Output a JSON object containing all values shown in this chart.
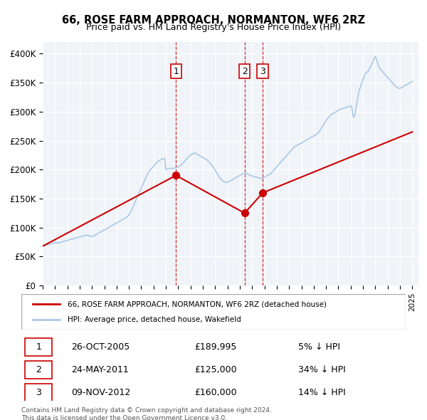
{
  "title": "66, ROSE FARM APPROACH, NORMANTON, WF6 2RZ",
  "subtitle": "Price paid vs. HM Land Registry's House Price Index (HPI)",
  "property_label": "66, ROSE FARM APPROACH, NORMANTON, WF6 2RZ (detached house)",
  "hpi_label": "HPI: Average price, detached house, Wakefield",
  "property_color": "#cc0000",
  "hpi_color": "#aac8e8",
  "background_color": "#f0f4f8",
  "plot_bg_color": "#f0f4f8",
  "xlim_start": 1995.0,
  "xlim_end": 2025.5,
  "ylim": [
    0,
    420000
  ],
  "yticks": [
    0,
    50000,
    100000,
    150000,
    200000,
    250000,
    300000,
    350000,
    400000
  ],
  "ytick_labels": [
    "£0",
    "£50K",
    "£100K",
    "£150K",
    "£200K",
    "£250K",
    "£300K",
    "£350K",
    "£400K"
  ],
  "transactions": [
    {
      "num": 1,
      "date": "26-OCT-2005",
      "price": 189995,
      "pct": "5%",
      "direction": "↓",
      "year_x": 2005.82
    },
    {
      "num": 2,
      "date": "24-MAY-2011",
      "price": 125000,
      "pct": "34%",
      "direction": "↓",
      "year_x": 2011.39
    },
    {
      "num": 3,
      "date": "09-NOV-2012",
      "price": 160000,
      "pct": "14%",
      "direction": "↓",
      "year_x": 2012.86
    }
  ],
  "footnote1": "Contains HM Land Registry data © Crown copyright and database right 2024.",
  "footnote2": "This data is licensed under the Open Government Licence v3.0.",
  "hpi_data": {
    "years": [
      1995.0,
      1995.083,
      1995.167,
      1995.25,
      1995.333,
      1995.417,
      1995.5,
      1995.583,
      1995.667,
      1995.75,
      1995.833,
      1995.917,
      1996.0,
      1996.083,
      1996.167,
      1996.25,
      1996.333,
      1996.417,
      1996.5,
      1996.583,
      1996.667,
      1996.75,
      1996.833,
      1996.917,
      1997.0,
      1997.083,
      1997.167,
      1997.25,
      1997.333,
      1997.417,
      1997.5,
      1997.583,
      1997.667,
      1997.75,
      1997.833,
      1997.917,
      1998.0,
      1998.083,
      1998.167,
      1998.25,
      1998.333,
      1998.417,
      1998.5,
      1998.583,
      1998.667,
      1998.75,
      1998.833,
      1998.917,
      1999.0,
      1999.083,
      1999.167,
      1999.25,
      1999.333,
      1999.417,
      1999.5,
      1999.583,
      1999.667,
      1999.75,
      1999.833,
      1999.917,
      2000.0,
      2000.083,
      2000.167,
      2000.25,
      2000.333,
      2000.417,
      2000.5,
      2000.583,
      2000.667,
      2000.75,
      2000.833,
      2000.917,
      2001.0,
      2001.083,
      2001.167,
      2001.25,
      2001.333,
      2001.417,
      2001.5,
      2001.583,
      2001.667,
      2001.75,
      2001.833,
      2001.917,
      2002.0,
      2002.083,
      2002.167,
      2002.25,
      2002.333,
      2002.417,
      2002.5,
      2002.583,
      2002.667,
      2002.75,
      2002.833,
      2002.917,
      2003.0,
      2003.083,
      2003.167,
      2003.25,
      2003.333,
      2003.417,
      2003.5,
      2003.583,
      2003.667,
      2003.75,
      2003.833,
      2003.917,
      2004.0,
      2004.083,
      2004.167,
      2004.25,
      2004.333,
      2004.417,
      2004.5,
      2004.583,
      2004.667,
      2004.75,
      2004.833,
      2004.917,
      2005.0,
      2005.083,
      2005.167,
      2005.25,
      2005.333,
      2005.417,
      2005.5,
      2005.583,
      2005.667,
      2005.75,
      2005.833,
      2005.917,
      2006.0,
      2006.083,
      2006.167,
      2006.25,
      2006.333,
      2006.417,
      2006.5,
      2006.583,
      2006.667,
      2006.75,
      2006.833,
      2006.917,
      2007.0,
      2007.083,
      2007.167,
      2007.25,
      2007.333,
      2007.417,
      2007.5,
      2007.583,
      2007.667,
      2007.75,
      2007.833,
      2007.917,
      2008.0,
      2008.083,
      2008.167,
      2008.25,
      2008.333,
      2008.417,
      2008.5,
      2008.583,
      2008.667,
      2008.75,
      2008.833,
      2008.917,
      2009.0,
      2009.083,
      2009.167,
      2009.25,
      2009.333,
      2009.417,
      2009.5,
      2009.583,
      2009.667,
      2009.75,
      2009.833,
      2009.917,
      2010.0,
      2010.083,
      2010.167,
      2010.25,
      2010.333,
      2010.417,
      2010.5,
      2010.583,
      2010.667,
      2010.75,
      2010.833,
      2010.917,
      2011.0,
      2011.083,
      2011.167,
      2011.25,
      2011.333,
      2011.417,
      2011.5,
      2011.583,
      2011.667,
      2011.75,
      2011.833,
      2011.917,
      2012.0,
      2012.083,
      2012.167,
      2012.25,
      2012.333,
      2012.417,
      2012.5,
      2012.583,
      2012.667,
      2012.75,
      2012.833,
      2012.917,
      2013.0,
      2013.083,
      2013.167,
      2013.25,
      2013.333,
      2013.417,
      2013.5,
      2013.583,
      2013.667,
      2013.75,
      2013.833,
      2013.917,
      2014.0,
      2014.083,
      2014.167,
      2014.25,
      2014.333,
      2014.417,
      2014.5,
      2014.583,
      2014.667,
      2014.75,
      2014.833,
      2014.917,
      2015.0,
      2015.083,
      2015.167,
      2015.25,
      2015.333,
      2015.417,
      2015.5,
      2015.583,
      2015.667,
      2015.75,
      2015.833,
      2015.917,
      2016.0,
      2016.083,
      2016.167,
      2016.25,
      2016.333,
      2016.417,
      2016.5,
      2016.583,
      2016.667,
      2016.75,
      2016.833,
      2016.917,
      2017.0,
      2017.083,
      2017.167,
      2017.25,
      2017.333,
      2017.417,
      2017.5,
      2017.583,
      2017.667,
      2017.75,
      2017.833,
      2017.917,
      2018.0,
      2018.083,
      2018.167,
      2018.25,
      2018.333,
      2018.417,
      2018.5,
      2018.583,
      2018.667,
      2018.75,
      2018.833,
      2018.917,
      2019.0,
      2019.083,
      2019.167,
      2019.25,
      2019.333,
      2019.417,
      2019.5,
      2019.583,
      2019.667,
      2019.75,
      2019.833,
      2019.917,
      2020.0,
      2020.083,
      2020.167,
      2020.25,
      2020.333,
      2020.417,
      2020.5,
      2020.583,
      2020.667,
      2020.75,
      2020.833,
      2020.917,
      2021.0,
      2021.083,
      2021.167,
      2021.25,
      2021.333,
      2021.417,
      2021.5,
      2021.583,
      2021.667,
      2021.75,
      2021.833,
      2021.917,
      2022.0,
      2022.083,
      2022.167,
      2022.25,
      2022.333,
      2022.417,
      2022.5,
      2022.583,
      2022.667,
      2022.75,
      2022.833,
      2022.917,
      2023.0,
      2023.083,
      2023.167,
      2023.25,
      2023.333,
      2023.417,
      2023.5,
      2023.583,
      2023.667,
      2023.75,
      2023.833,
      2023.917,
      2024.0,
      2024.083,
      2024.167,
      2024.25,
      2024.333,
      2024.417,
      2024.5,
      2024.583,
      2024.667,
      2024.75,
      2024.833,
      2024.917,
      2025.0
    ],
    "values": [
      70000,
      69500,
      69000,
      69500,
      70000,
      70500,
      71000,
      71500,
      72000,
      72500,
      73000,
      73500,
      74000,
      74500,
      74000,
      73500,
      74000,
      74500,
      75000,
      75500,
      76000,
      76500,
      77000,
      77500,
      78000,
      78500,
      79000,
      79500,
      80000,
      80500,
      81000,
      81500,
      82000,
      82500,
      83000,
      83500,
      84000,
      84500,
      85000,
      85500,
      86000,
      86500,
      87000,
      87000,
      86500,
      86000,
      85500,
      85000,
      85000,
      85500,
      86000,
      87000,
      88000,
      89000,
      90000,
      91000,
      92000,
      93000,
      94000,
      95000,
      96000,
      97000,
      98000,
      99000,
      100000,
      101000,
      102000,
      103000,
      104000,
      105000,
      106000,
      107000,
      108000,
      109000,
      110000,
      111000,
      112000,
      113000,
      114000,
      115000,
      116000,
      117000,
      118000,
      120000,
      122000,
      125000,
      128000,
      132000,
      136000,
      140000,
      144000,
      148000,
      152000,
      156000,
      160000,
      164000,
      168000,
      172000,
      176000,
      180000,
      184000,
      188000,
      192000,
      195000,
      198000,
      200000,
      202000,
      204000,
      206000,
      208000,
      210000,
      212000,
      214000,
      215000,
      216000,
      217000,
      218000,
      218500,
      219000,
      219500,
      200000,
      200500,
      201000,
      201500,
      202000,
      202500,
      202000,
      202000,
      202500,
      203000,
      203500,
      204000,
      205000,
      206000,
      207000,
      208000,
      210000,
      212000,
      214000,
      216000,
      218000,
      220000,
      222000,
      224000,
      225000,
      226000,
      227000,
      228000,
      229000,
      228000,
      227000,
      226000,
      225000,
      224000,
      223000,
      222000,
      221000,
      220000,
      219000,
      218000,
      217000,
      215000,
      213000,
      211000,
      209000,
      207000,
      205000,
      202000,
      199000,
      196000,
      193000,
      190000,
      187000,
      185000,
      183000,
      181000,
      180000,
      179000,
      178000,
      177500,
      178000,
      179000,
      180000,
      181000,
      182000,
      183000,
      184000,
      185000,
      186000,
      187000,
      188000,
      189000,
      190000,
      191000,
      192000,
      193000,
      194000,
      195000,
      194000,
      193000,
      192000,
      191000,
      190000,
      189500,
      189000,
      188500,
      188000,
      187500,
      187000,
      186500,
      186000,
      185500,
      185000,
      185000,
      185500,
      186000,
      187000,
      188000,
      189000,
      190000,
      191000,
      192000,
      193000,
      195000,
      197000,
      199000,
      201000,
      203000,
      205000,
      207000,
      209000,
      211000,
      213000,
      215000,
      217000,
      219000,
      221000,
      223000,
      225000,
      227000,
      229000,
      231000,
      233000,
      235000,
      237000,
      239000,
      240000,
      241000,
      242000,
      243000,
      244000,
      245000,
      246000,
      247000,
      248000,
      249000,
      250000,
      251000,
      252000,
      253000,
      254000,
      255000,
      256000,
      257000,
      258000,
      259000,
      260000,
      261000,
      263000,
      265000,
      267000,
      270000,
      273000,
      276000,
      279000,
      282000,
      285000,
      287000,
      289000,
      291000,
      293000,
      295000,
      296000,
      297000,
      298000,
      299000,
      300000,
      301000,
      302000,
      303000,
      304000,
      305000,
      305500,
      306000,
      306500,
      307000,
      307500,
      308000,
      308500,
      309000,
      310000,
      308000,
      295000,
      290000,
      295000,
      305000,
      315000,
      325000,
      335000,
      340000,
      345000,
      350000,
      355000,
      360000,
      365000,
      367000,
      368000,
      370000,
      373000,
      376000,
      380000,
      384000,
      388000,
      392000,
      395000,
      390000,
      385000,
      380000,
      375000,
      373000,
      371000,
      369000,
      367000,
      365000,
      363000,
      361000,
      359000,
      357000,
      355000,
      353000,
      351000,
      349000,
      347000,
      345000,
      343000,
      342000,
      341000,
      340000,
      340000,
      341000,
      342000,
      343000,
      344000,
      345000,
      346000,
      347000,
      348000,
      349000,
      350000,
      351000,
      352000
    ]
  },
  "property_data": {
    "years": [
      1995.0,
      2005.82,
      2011.39,
      2012.86,
      2025.0
    ],
    "values": [
      68000,
      189995,
      125000,
      160000,
      265000
    ]
  }
}
